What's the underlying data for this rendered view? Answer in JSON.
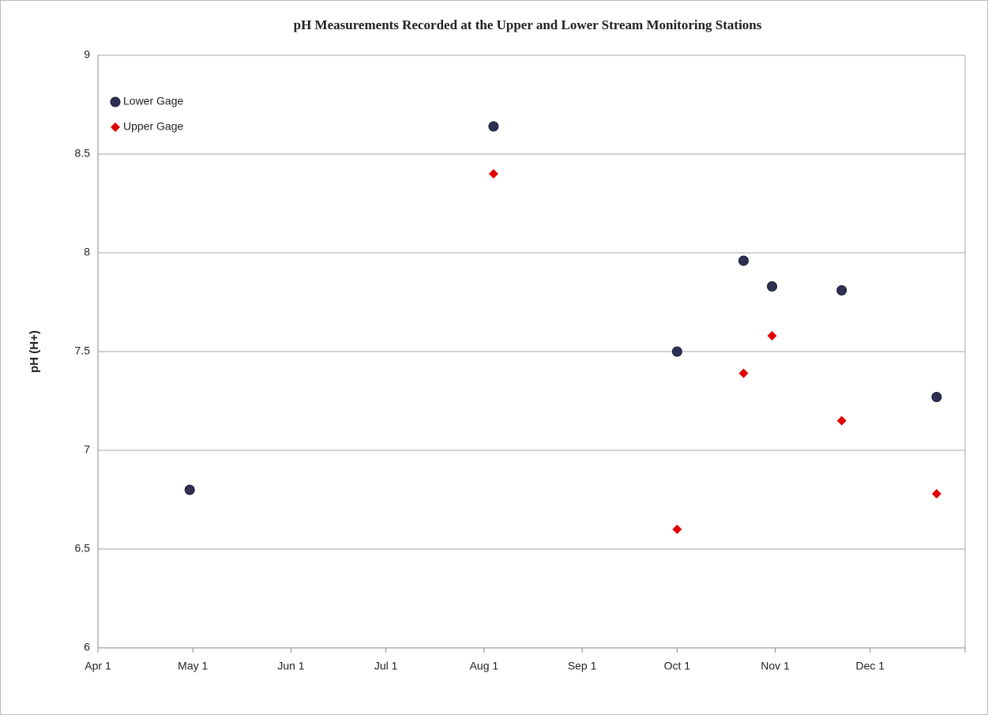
{
  "chart_data": {
    "type": "scatter",
    "title": "pH Measurements Recorded at the Upper and Lower Stream Monitoring Stations",
    "y_label": "pH (H+)",
    "series": [
      {
        "name": "Lower Gage",
        "color": "#2f2f52",
        "marker": "circle",
        "x": [
          "Apr 30",
          "Aug 4",
          "Oct 1",
          "Oct 22",
          "Oct 31",
          "Nov 22",
          "Dec 22"
        ],
        "values": [
          6.8,
          8.64,
          7.5,
          7.96,
          7.83,
          7.81,
          7.27
        ]
      },
      {
        "name": "Upper Gage",
        "color": "#e00000",
        "marker": "diamond",
        "x": [
          "Aug 4",
          "Oct 1",
          "Oct 22",
          "Oct 31",
          "Nov 22",
          "Dec 22"
        ],
        "values": [
          8.4,
          6.6,
          7.39,
          7.58,
          7.15,
          6.78
        ]
      }
    ],
    "xlim": [
      "Apr 1",
      "Dec 31"
    ],
    "xticks": [
      "Apr 1",
      "May 1",
      "Jun 1",
      "Jul 1",
      "Aug 1",
      "Sep 1",
      "Oct 1",
      "Nov 1",
      "Dec 1"
    ],
    "ylim": [
      6,
      9
    ],
    "yticks": [
      6,
      6.5,
      7,
      7.5,
      8,
      8.5,
      9
    ],
    "grid": true,
    "legend": "top-left"
  }
}
